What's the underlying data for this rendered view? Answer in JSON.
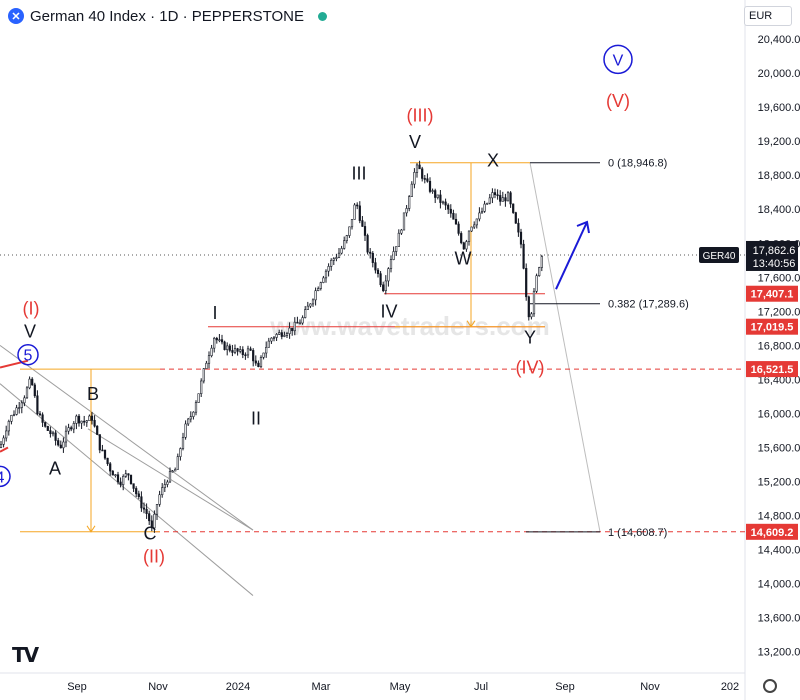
{
  "header": {
    "title": "German 40 Index · 1D · PEPPERSTONE",
    "symbol_icon": "x-symbol-icon",
    "currency": "EUR"
  },
  "watermark": "www.wavetraders.com",
  "colors": {
    "candle": "#131722",
    "red": "#e53935",
    "orange": "#f5a623",
    "blue": "#1a1ad6",
    "grey": "#b0b0b0"
  },
  "chart_data": {
    "type": "candlestick",
    "instrument": "GER40",
    "y_axis": {
      "ticks": [
        13200,
        13600,
        14000,
        14400,
        14800,
        15200,
        15600,
        16000,
        16400,
        16800,
        17200,
        17600,
        18000,
        18400,
        18800,
        19200,
        19600,
        20000,
        20400
      ],
      "ylim": [
        12950,
        20800
      ]
    },
    "x_axis": {
      "ticks": [
        {
          "label": "Sep",
          "t": 77
        },
        {
          "label": "Nov",
          "t": 158
        },
        {
          "label": "2024",
          "t": 238
        },
        {
          "label": "Mar",
          "t": 321
        },
        {
          "label": "May",
          "t": 400
        },
        {
          "label": "Jul",
          "t": 481
        },
        {
          "label": "Sep",
          "t": 565
        },
        {
          "label": "Nov",
          "t": 650
        },
        {
          "label": "202",
          "t": 730
        }
      ],
      "tlim": [
        0,
        745
      ]
    },
    "price_waypoints": [
      [
        0,
        15600
      ],
      [
        8,
        15900
      ],
      [
        16,
        16050
      ],
      [
        24,
        16200
      ],
      [
        31,
        16400
      ],
      [
        38,
        16000
      ],
      [
        44,
        15850
      ],
      [
        52,
        15750
      ],
      [
        60,
        15600
      ],
      [
        68,
        15800
      ],
      [
        76,
        15950
      ],
      [
        84,
        15900
      ],
      [
        92,
        15950
      ],
      [
        100,
        15600
      ],
      [
        110,
        15350
      ],
      [
        120,
        15200
      ],
      [
        128,
        15300
      ],
      [
        140,
        14950
      ],
      [
        148,
        14800
      ],
      [
        152,
        14620
      ],
      [
        158,
        15000
      ],
      [
        168,
        15250
      ],
      [
        176,
        15350
      ],
      [
        184,
        15800
      ],
      [
        192,
        16000
      ],
      [
        200,
        16300
      ],
      [
        206,
        16600
      ],
      [
        214,
        16900
      ],
      [
        222,
        16800
      ],
      [
        232,
        16750
      ],
      [
        242,
        16700
      ],
      [
        250,
        16750
      ],
      [
        258,
        16500
      ],
      [
        264,
        16750
      ],
      [
        272,
        16900
      ],
      [
        282,
        16950
      ],
      [
        292,
        17000
      ],
      [
        302,
        17100
      ],
      [
        312,
        17350
      ],
      [
        322,
        17600
      ],
      [
        332,
        17800
      ],
      [
        340,
        17900
      ],
      [
        348,
        18100
      ],
      [
        356,
        18500
      ],
      [
        362,
        18200
      ],
      [
        368,
        17900
      ],
      [
        376,
        17700
      ],
      [
        383,
        17470
      ],
      [
        390,
        17800
      ],
      [
        398,
        18050
      ],
      [
        406,
        18400
      ],
      [
        413,
        18800
      ],
      [
        418,
        18900
      ],
      [
        424,
        18750
      ],
      [
        432,
        18600
      ],
      [
        440,
        18500
      ],
      [
        448,
        18400
      ],
      [
        456,
        18200
      ],
      [
        464,
        17950
      ],
      [
        470,
        18200
      ],
      [
        478,
        18300
      ],
      [
        486,
        18450
      ],
      [
        494,
        18600
      ],
      [
        500,
        18500
      ],
      [
        508,
        18550
      ],
      [
        516,
        18200
      ],
      [
        522,
        17950
      ],
      [
        527,
        17300
      ],
      [
        530,
        17100
      ],
      [
        534,
        17400
      ],
      [
        538,
        17700
      ],
      [
        542,
        17862
      ]
    ],
    "last_price": {
      "label": "GER40",
      "value": "17,862.6",
      "countdown": "13:40:56"
    },
    "price_labels": [
      {
        "value": "17,407.1",
        "price": 17407.1
      },
      {
        "value": "17,019.5",
        "price": 17019.5
      },
      {
        "value": "16,521.5",
        "price": 16521.5
      },
      {
        "value": "14,609.2",
        "price": 14609.2
      }
    ],
    "fibonacci": [
      {
        "text": "0 (18,946.8)",
        "price": 18946.8
      },
      {
        "text": "0.382 (17,289.6)",
        "price": 17289.6
      },
      {
        "text": "1 (14,608.7)",
        "price": 14608.7
      }
    ],
    "wave_labels": [
      {
        "text": "V",
        "color": "black",
        "t": 30,
        "price": 16890
      },
      {
        "text": "5",
        "color": "blue",
        "t": 28,
        "price": 16620,
        "circled": true
      },
      {
        "text": "(I)",
        "color": "red",
        "t": 31,
        "price": 17160
      },
      {
        "text": "4",
        "color": "blue",
        "t": 0,
        "price": 15190,
        "circled": true
      },
      {
        "text": "A",
        "color": "black",
        "t": 55,
        "price": 15280
      },
      {
        "text": "B",
        "color": "black",
        "t": 93,
        "price": 16160
      },
      {
        "text": "C",
        "color": "black",
        "t": 150,
        "price": 14520
      },
      {
        "text": "(II)",
        "color": "red",
        "t": 154,
        "price": 14250
      },
      {
        "text": "I",
        "color": "black",
        "t": 215,
        "price": 17110
      },
      {
        "text": "II",
        "color": "black",
        "t": 256,
        "price": 15870
      },
      {
        "text": "III",
        "color": "black",
        "t": 359,
        "price": 18750
      },
      {
        "text": "IV",
        "color": "black",
        "t": 389,
        "price": 17130
      },
      {
        "text": "(III)",
        "color": "red",
        "t": 420,
        "price": 19430
      },
      {
        "text": "V",
        "color": "black",
        "t": 415,
        "price": 19120
      },
      {
        "text": "X",
        "color": "black",
        "t": 493,
        "price": 18900
      },
      {
        "text": "W",
        "color": "black",
        "t": 463,
        "price": 17750
      },
      {
        "text": "Y",
        "color": "black",
        "t": 530,
        "price": 16820
      },
      {
        "text": "(IV)",
        "color": "red",
        "t": 530,
        "price": 16470
      },
      {
        "text": "V",
        "color": "blue",
        "t": 618,
        "price": 20090,
        "circled": true
      },
      {
        "text": "(V)",
        "color": "red",
        "t": 618,
        "price": 19600
      }
    ],
    "annotations": {
      "channel": [
        [
          0,
          16800,
          253,
          14630
        ],
        [
          0,
          16350,
          253,
          13860
        ],
        [
          88,
          15820,
          253,
          14630
        ]
      ],
      "h_lines": [
        {
          "t1": 384,
          "t2": 545,
          "price": 17407.1,
          "color": "red",
          "style": "solid"
        },
        {
          "t1": 208,
          "t2": 545,
          "price": 17019.5,
          "color": "red",
          "style": "solid"
        },
        {
          "t1": 160,
          "t2": 745,
          "price": 16521.5,
          "color": "red",
          "style": "dashed"
        },
        {
          "t1": 155,
          "t2": 745,
          "price": 14609.2,
          "color": "red",
          "style": "dashed"
        },
        {
          "t1": 410,
          "t2": 530,
          "price": 18946.8,
          "color": "orange",
          "style": "solid"
        },
        {
          "t1": 395,
          "t2": 545,
          "price": 17019.5,
          "color": "orange",
          "style": "solid"
        },
        {
          "t1": 20,
          "t2": 160,
          "price": 16521.5,
          "color": "orange",
          "style": "solid"
        },
        {
          "t1": 20,
          "t2": 160,
          "price": 14609.2,
          "color": "orange",
          "style": "solid"
        }
      ],
      "measure_arrows": [
        {
          "t": 471,
          "p1": 18946.8,
          "p2": 17019.5
        },
        {
          "t": 91,
          "p1": 16521.5,
          "p2": 14609.2
        }
      ],
      "projection_arrow": [
        556,
        17460,
        587,
        18250
      ],
      "red_stub": [
        [
          0,
          15550,
          8,
          15600
        ],
        [
          0,
          16540,
          28,
          16620
        ]
      ]
    }
  }
}
